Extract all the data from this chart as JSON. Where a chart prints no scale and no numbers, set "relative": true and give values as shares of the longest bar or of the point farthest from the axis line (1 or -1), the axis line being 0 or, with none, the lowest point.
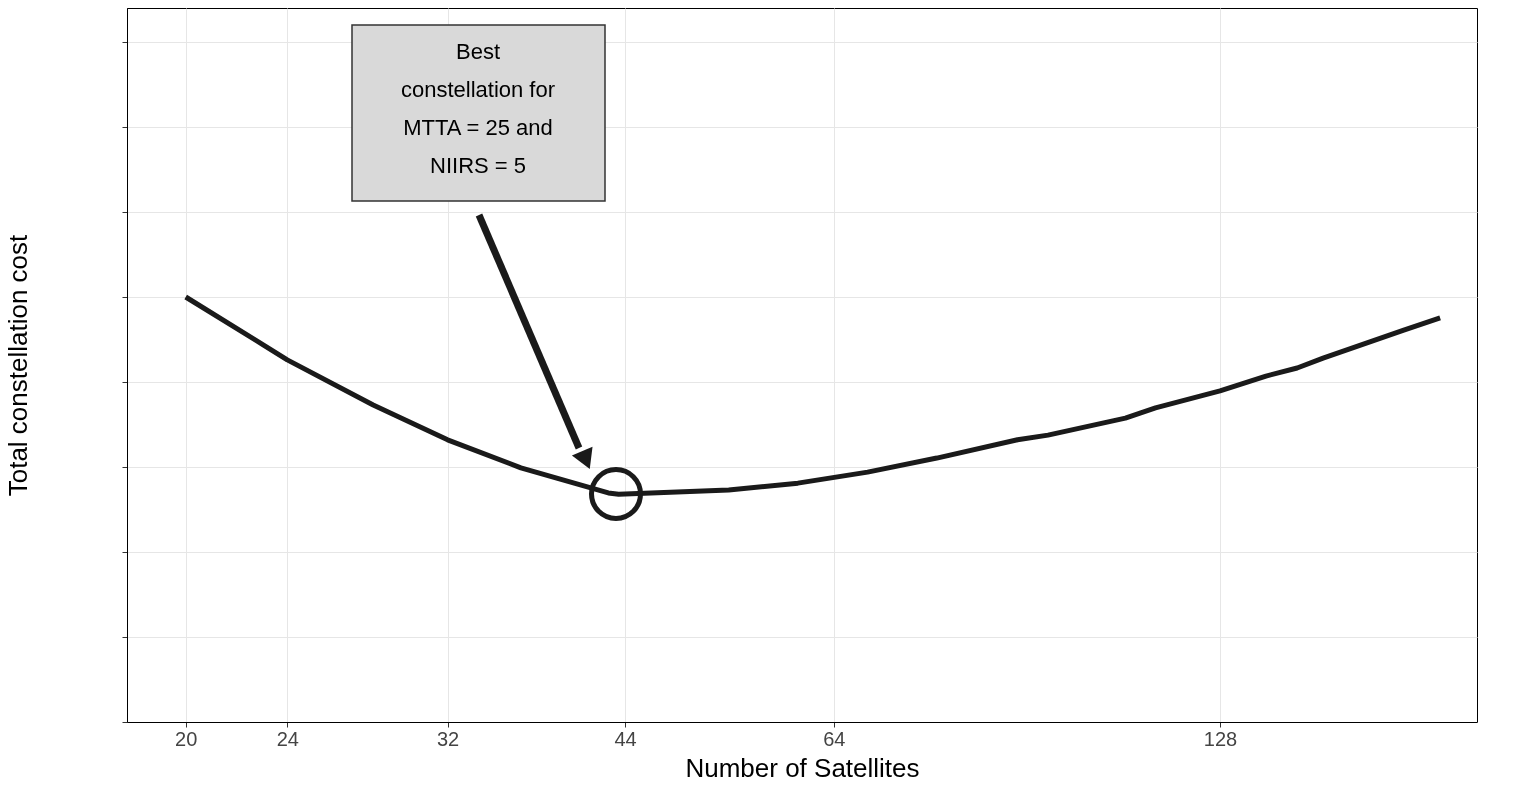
{
  "chart_data": {
    "type": "line",
    "relative": true,
    "xlabel": "Number of Satellites",
    "ylabel": "Total constellation cost",
    "log": "x",
    "grid": true,
    "xlim": [
      18,
      203
    ],
    "xticks": [
      20,
      24,
      32,
      44,
      64,
      128
    ],
    "x": [
      20,
      23,
      24,
      28,
      32,
      36.5,
      42.7,
      43.5,
      53,
      60,
      68,
      77,
      89,
      94,
      108,
      114,
      128,
      139,
      147,
      154,
      178,
      190
    ],
    "series": [
      {
        "color": "#1a1a1a",
        "values": [
          1,
          0.887,
          0.852,
          0.746,
          0.664,
          0.598,
          0.539,
          0.536,
          0.546,
          0.562,
          0.588,
          0.621,
          0.664,
          0.675,
          0.715,
          0.739,
          0.779,
          0.814,
          0.833,
          0.856,
          0.922,
          0.951
        ]
      }
    ],
    "annotations": [
      "Best constellation for MTTA = 25 and NIIRS = 5"
    ]
  }
}
